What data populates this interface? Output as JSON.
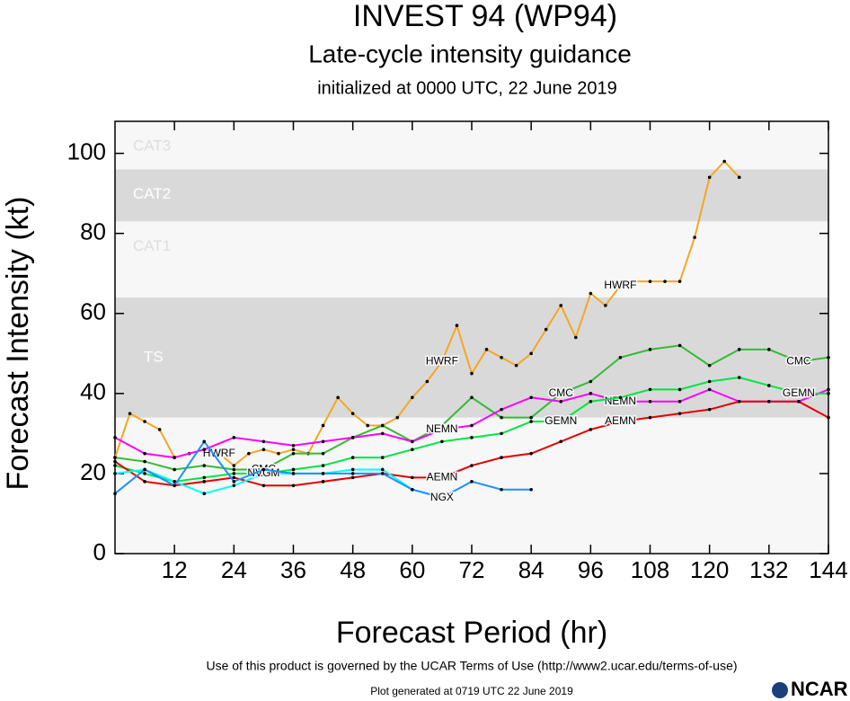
{
  "chart_data": {
    "type": "line",
    "title": "INVEST 94 (WP94)",
    "subtitle": "Late-cycle intensity guidance",
    "initialized": "initialized at 0000 UTC, 22 June 2019",
    "x_label": "Forecast Period (hr)",
    "y_label": "Forecast Intensity (kt)",
    "xlim": [
      0,
      144
    ],
    "ylim": [
      0,
      108
    ],
    "xticks": [
      12,
      24,
      36,
      48,
      60,
      72,
      84,
      96,
      108,
      120,
      132,
      144
    ],
    "yticks": [
      0,
      20,
      40,
      60,
      80,
      100
    ],
    "bands": [
      {
        "name": "TS",
        "from": 34,
        "to": 64,
        "color": "#d9d9d9"
      },
      {
        "name": "CAT1",
        "from": 64,
        "to": 83,
        "color": "#f7f7f7"
      },
      {
        "name": "CAT2",
        "from": 83,
        "to": 96,
        "color": "#d9d9d9"
      },
      {
        "name": "CAT3",
        "from": 96,
        "to": 113,
        "color": "#f7f7f7"
      }
    ],
    "series": [
      {
        "name": "HWRF",
        "color": "#f5a623",
        "x": [
          0,
          3,
          6,
          9,
          12,
          15,
          18,
          21,
          24,
          27,
          30,
          33,
          36,
          39,
          42,
          45,
          48,
          51,
          54,
          57,
          60,
          63,
          66,
          69,
          72,
          75,
          78,
          81,
          84,
          87,
          90,
          93,
          96,
          99,
          102,
          105,
          108,
          111,
          114,
          117,
          120,
          123,
          126
        ],
        "values": [
          24,
          35,
          33,
          31,
          24,
          25,
          26,
          25,
          22,
          25,
          26,
          25,
          26,
          25,
          32,
          39,
          35,
          32,
          32,
          34,
          39,
          43,
          48,
          57,
          45,
          51,
          49,
          47,
          50,
          56,
          62,
          54,
          65,
          62,
          67,
          68,
          68,
          68,
          68,
          79,
          94,
          98,
          94
        ]
      },
      {
        "name": "CMC",
        "color": "#33bb33",
        "x": [
          0,
          6,
          12,
          18,
          24,
          30,
          36,
          42,
          48,
          54,
          60,
          66,
          72,
          78,
          84,
          90,
          96,
          102,
          108,
          114,
          120,
          126,
          132,
          138,
          144
        ],
        "values": [
          24,
          23,
          21,
          22,
          21,
          21,
          25,
          25,
          29,
          32,
          28,
          32,
          39,
          34,
          34,
          40,
          43,
          49,
          51,
          52,
          47,
          51,
          51,
          48,
          49
        ]
      },
      {
        "name": "NEMN",
        "color": "#ff00ff",
        "x": [
          0,
          6,
          12,
          18,
          24,
          30,
          36,
          42,
          48,
          54,
          60,
          66,
          72,
          78,
          84,
          90,
          96,
          102,
          108,
          114,
          120,
          126,
          132,
          138,
          144
        ],
        "values": [
          29,
          25,
          24,
          26,
          29,
          28,
          27,
          28,
          29,
          30,
          28,
          31,
          32,
          36,
          39,
          38,
          40,
          38,
          38,
          38,
          41,
          38,
          38,
          38,
          41
        ]
      },
      {
        "name": "GEMN",
        "color": "#00e640",
        "x": [
          0,
          6,
          12,
          18,
          24,
          30,
          36,
          42,
          48,
          54,
          60,
          66,
          72,
          78,
          84,
          90,
          96,
          102,
          108,
          114,
          120,
          126,
          132,
          138,
          144
        ],
        "values": [
          22,
          20,
          18,
          19,
          20,
          20,
          21,
          22,
          24,
          24,
          26,
          28,
          29,
          30,
          33,
          33,
          38,
          39,
          41,
          41,
          43,
          44,
          42,
          40,
          40
        ]
      },
      {
        "name": "AEMN",
        "color": "#e60000",
        "x": [
          0,
          6,
          12,
          18,
          24,
          30,
          36,
          42,
          48,
          54,
          60,
          66,
          72,
          78,
          84,
          90,
          96,
          102,
          108,
          114,
          120,
          126,
          132,
          138,
          144
        ],
        "values": [
          23,
          18,
          17,
          18,
          19,
          17,
          17,
          18,
          19,
          20,
          19,
          19,
          22,
          24,
          25,
          28,
          31,
          33,
          34,
          35,
          36,
          38,
          38,
          38,
          34
        ]
      },
      {
        "name": "NVGM",
        "color": "#00ffff",
        "x": [
          0,
          6,
          12,
          18,
          24,
          30,
          36,
          42,
          48,
          54,
          60,
          66
        ],
        "values": [
          20,
          21,
          18,
          15,
          17,
          20,
          20,
          20,
          21,
          21,
          16,
          14
        ]
      },
      {
        "name": "NGX",
        "color": "#1e90ff",
        "x": [
          0,
          6,
          12,
          18,
          24,
          30,
          36,
          42,
          48,
          54,
          60,
          66,
          72,
          78,
          84
        ],
        "values": [
          15,
          21,
          17,
          28,
          18,
          21,
          20,
          20,
          20,
          20,
          16,
          14,
          18,
          16,
          16
        ]
      }
    ],
    "terms": "Use of this product is governed by the UCAR Terms of Use (http://www2.ucar.edu/terms-of-use)",
    "generated": "Plot generated at 0719 UTC   22 June 2019",
    "logo": "NCAR"
  }
}
